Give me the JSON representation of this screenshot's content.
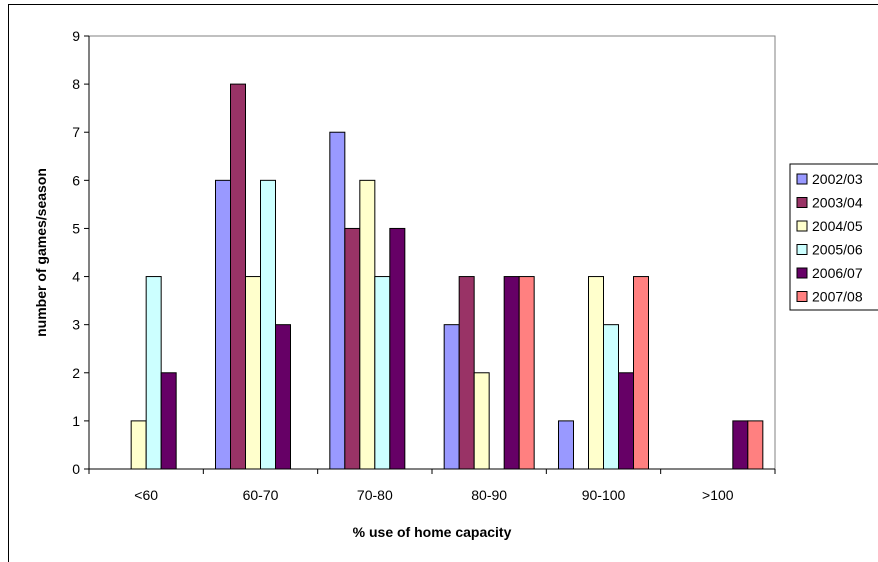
{
  "chart_data": {
    "type": "bar",
    "categories": [
      "<60",
      "60-70",
      "70-80",
      "80-90",
      "90-100",
      ">100"
    ],
    "series": [
      {
        "name": "2002/03",
        "color": "#9999FF",
        "values": [
          0,
          6,
          7,
          3,
          1,
          0
        ]
      },
      {
        "name": "2003/04",
        "color": "#993366",
        "values": [
          0,
          8,
          5,
          4,
          0,
          0
        ]
      },
      {
        "name": "2004/05",
        "color": "#FFFFCC",
        "values": [
          1,
          4,
          6,
          2,
          4,
          0
        ]
      },
      {
        "name": "2005/06",
        "color": "#CCFFFF",
        "values": [
          4,
          6,
          4,
          0,
          3,
          0
        ]
      },
      {
        "name": "2006/07",
        "color": "#660066",
        "values": [
          2,
          3,
          5,
          4,
          2,
          1
        ]
      },
      {
        "name": "2007/08",
        "color": "#FF8080",
        "values": [
          0,
          0,
          0,
          4,
          4,
          1
        ]
      }
    ],
    "xlabel": "% use of home capacity",
    "ylabel": "number of games/season",
    "ylim": [
      0,
      9
    ],
    "yticks": [
      0,
      1,
      2,
      3,
      4,
      5,
      6,
      7,
      8,
      9
    ],
    "grid": false,
    "legend_position": "right"
  }
}
